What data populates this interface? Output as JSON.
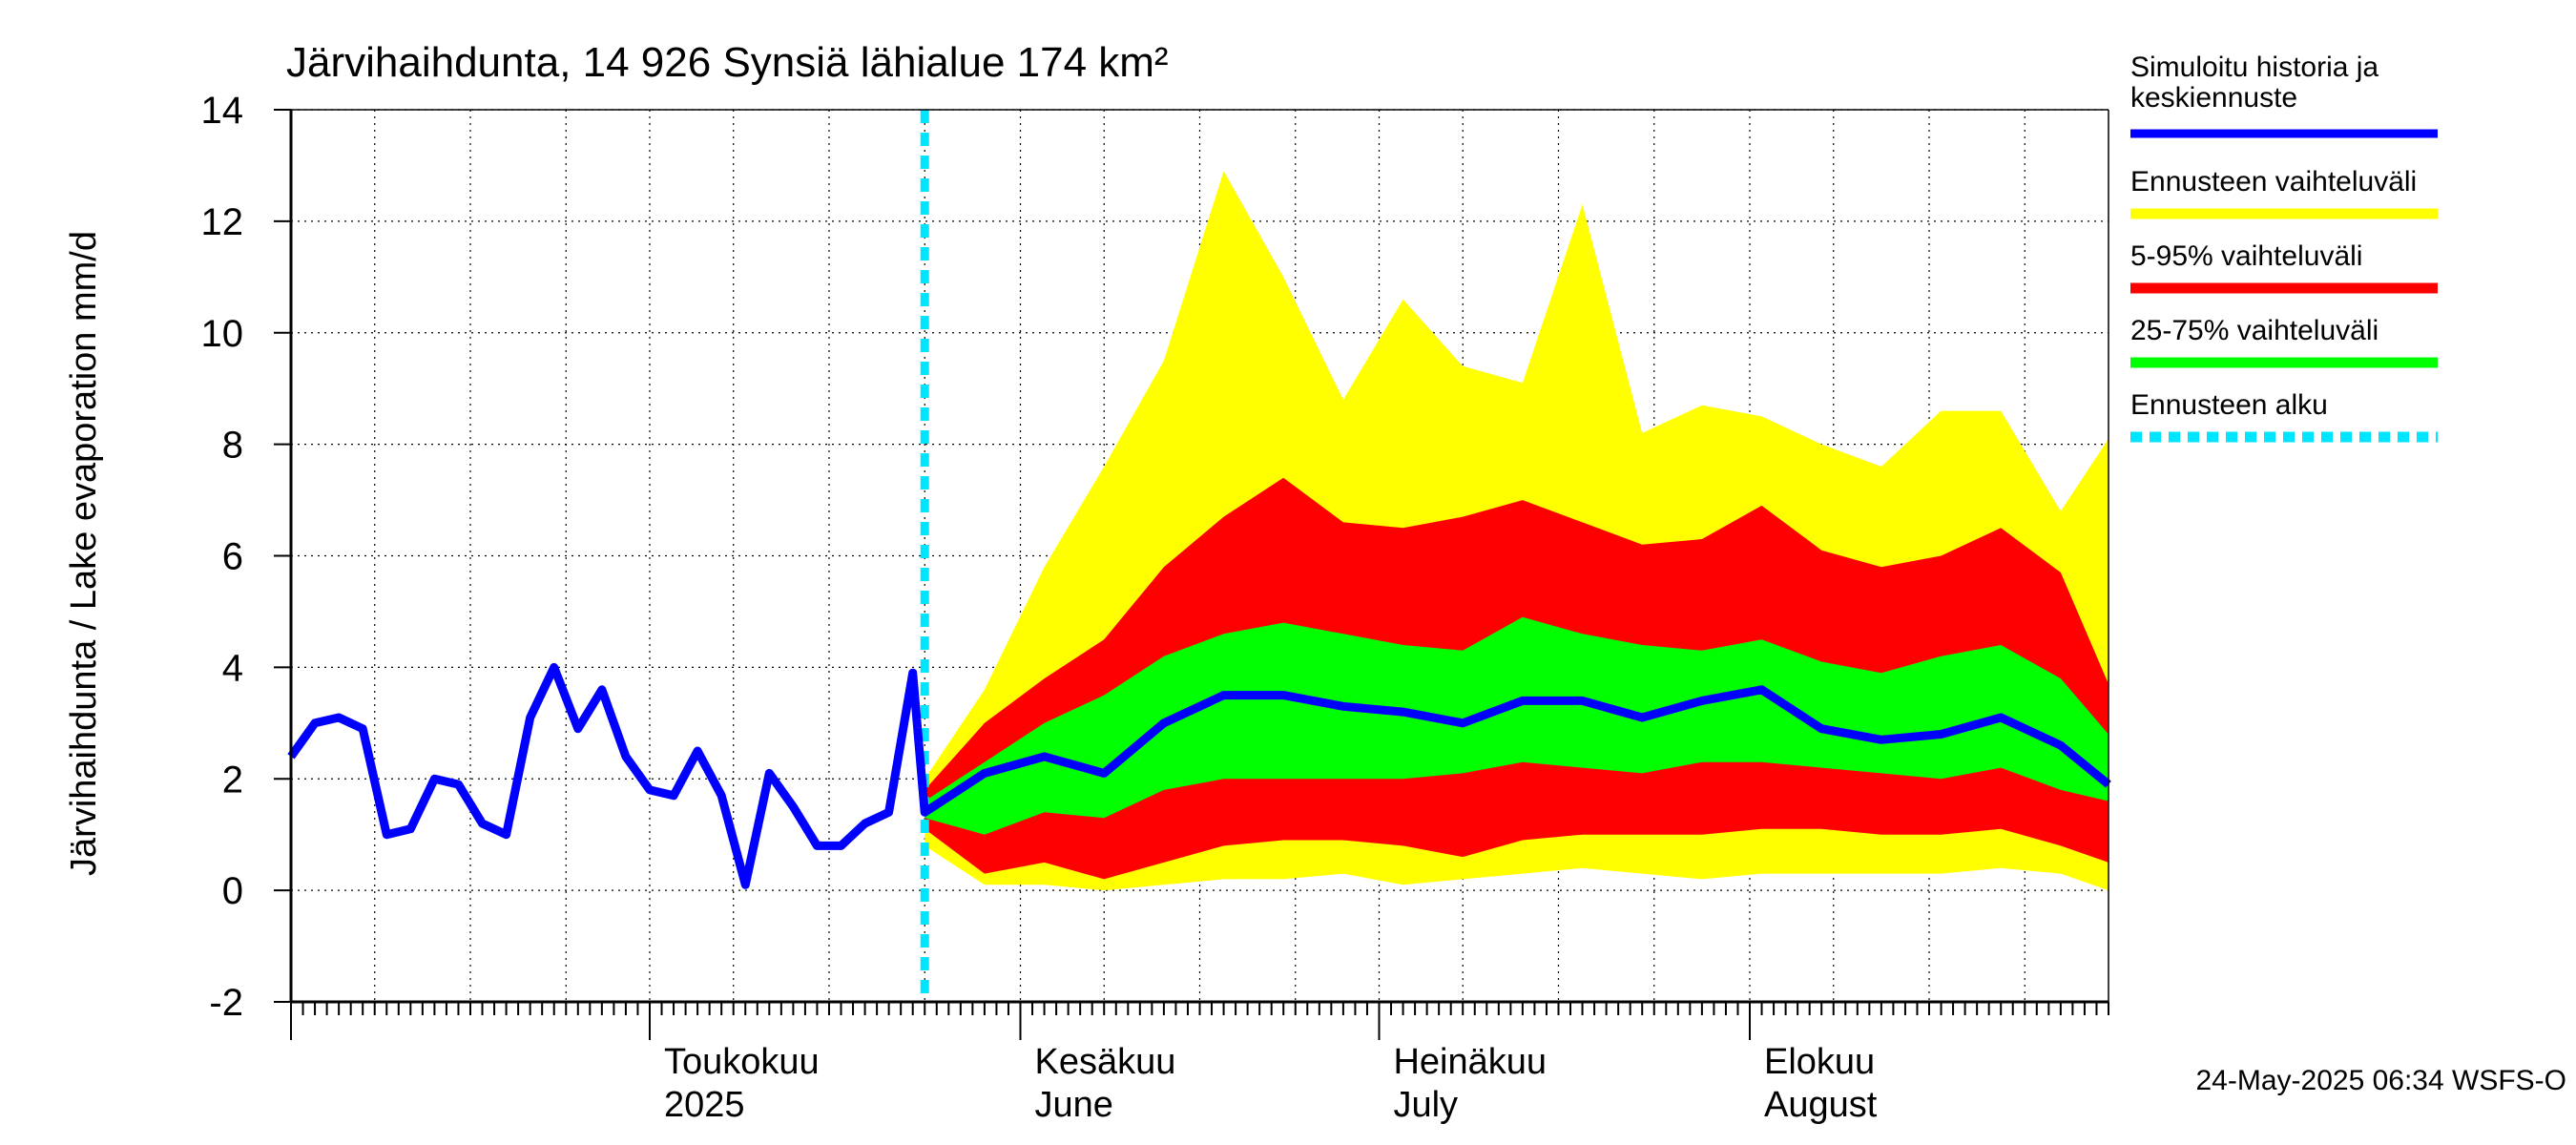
{
  "chart_data": {
    "type": "area",
    "title": "Järvihaihdunta, 14 926 Synsiä lähialue 174 km²",
    "ylabel": "Järvihaihdunta / Lake evaporation   mm/d",
    "ylim": [
      -2,
      14
    ],
    "y_ticks": [
      "-2",
      "0",
      "2",
      "4",
      "6",
      "8",
      "10",
      "12",
      "14"
    ],
    "x_range": [
      "2025-04-01",
      "2025-08-31"
    ],
    "month_labels": [
      {
        "line1": "Toukokuu",
        "line2": "2025",
        "date": "2025-05-01"
      },
      {
        "line1": "Kesäkuu",
        "line2": "June",
        "date": "2025-06-01"
      },
      {
        "line1": "Heinäkuu",
        "line2": "July",
        "date": "2025-07-01"
      },
      {
        "line1": "Elokuu",
        "line2": "August",
        "date": "2025-08-01"
      }
    ],
    "forecast_start": "2025-05-24",
    "history": {
      "dates": [
        "2025-04-01",
        "2025-04-03",
        "2025-04-05",
        "2025-04-07",
        "2025-04-09",
        "2025-04-11",
        "2025-04-13",
        "2025-04-15",
        "2025-04-17",
        "2025-04-19",
        "2025-04-21",
        "2025-04-23",
        "2025-04-25",
        "2025-04-27",
        "2025-04-29",
        "2025-05-01",
        "2025-05-03",
        "2025-05-05",
        "2025-05-07",
        "2025-05-09",
        "2025-05-11",
        "2025-05-13",
        "2025-05-15",
        "2025-05-17",
        "2025-05-19",
        "2025-05-21",
        "2025-05-23",
        "2025-05-24"
      ],
      "values": [
        2.4,
        3.0,
        3.1,
        2.9,
        1.0,
        1.1,
        2.0,
        1.9,
        1.2,
        1.0,
        3.1,
        4.0,
        2.9,
        3.6,
        2.4,
        1.8,
        1.7,
        2.5,
        1.7,
        0.1,
        2.1,
        1.5,
        0.8,
        0.8,
        1.2,
        1.4,
        3.9,
        1.4
      ]
    },
    "forecast": {
      "dates": [
        "2025-05-24",
        "2025-05-29",
        "2025-06-03",
        "2025-06-08",
        "2025-06-13",
        "2025-06-18",
        "2025-06-23",
        "2025-06-28",
        "2025-07-03",
        "2025-07-08",
        "2025-07-13",
        "2025-07-18",
        "2025-07-23",
        "2025-07-28",
        "2025-08-02",
        "2025-08-07",
        "2025-08-12",
        "2025-08-17",
        "2025-08-22",
        "2025-08-27",
        "2025-08-31"
      ],
      "median": [
        1.4,
        2.1,
        2.4,
        2.1,
        3.0,
        3.5,
        3.5,
        3.3,
        3.2,
        3.0,
        3.4,
        3.4,
        3.1,
        3.4,
        3.6,
        2.9,
        2.7,
        2.8,
        3.1,
        2.6,
        1.9
      ],
      "p25": [
        1.3,
        1.0,
        1.4,
        1.3,
        1.8,
        2.0,
        2.0,
        2.0,
        2.0,
        2.1,
        2.3,
        2.2,
        2.1,
        2.3,
        2.3,
        2.2,
        2.1,
        2.0,
        2.2,
        1.8,
        1.6
      ],
      "p75": [
        1.6,
        2.3,
        3.0,
        3.5,
        4.2,
        4.6,
        4.8,
        4.6,
        4.4,
        4.3,
        4.9,
        4.6,
        4.4,
        4.3,
        4.5,
        4.1,
        3.9,
        4.2,
        4.4,
        3.8,
        2.8
      ],
      "p5": [
        1.1,
        0.3,
        0.5,
        0.2,
        0.5,
        0.8,
        0.9,
        0.9,
        0.8,
        0.6,
        0.9,
        1.0,
        1.0,
        1.0,
        1.1,
        1.1,
        1.0,
        1.0,
        1.1,
        0.8,
        0.5
      ],
      "p95": [
        1.8,
        3.0,
        3.8,
        4.5,
        5.8,
        6.7,
        7.4,
        6.6,
        6.5,
        6.7,
        7.0,
        6.6,
        6.2,
        6.3,
        6.9,
        6.1,
        5.8,
        6.0,
        6.5,
        5.7,
        3.7
      ],
      "min": [
        0.8,
        0.1,
        0.1,
        0.0,
        0.1,
        0.2,
        0.2,
        0.3,
        0.1,
        0.2,
        0.3,
        0.4,
        0.3,
        0.2,
        0.3,
        0.3,
        0.3,
        0.3,
        0.4,
        0.3,
        0.0
      ],
      "max": [
        2.0,
        3.6,
        5.8,
        7.6,
        9.5,
        12.9,
        11.0,
        8.8,
        10.6,
        9.4,
        9.1,
        12.3,
        8.2,
        8.7,
        8.5,
        8.0,
        7.6,
        8.6,
        8.6,
        6.8,
        8.1
      ]
    },
    "legend": [
      {
        "label": "Simuloitu historia ja keskiennuste",
        "color": "#0000ff",
        "style": "solid"
      },
      {
        "label": "Ennusteen vaihteluväli",
        "color": "#ffff00",
        "style": "solid"
      },
      {
        "label": "5-95% vaihteluväli",
        "color": "#ff0000",
        "style": "solid"
      },
      {
        "label": "25-75% vaihteluväli",
        "color": "#00ff00",
        "style": "solid"
      },
      {
        "label": "Ennusteen alku",
        "color": "#00e5ff",
        "style": "dashed"
      }
    ],
    "legend_position": "right",
    "grid": true
  },
  "timestamp": "24-May-2025 06:34 WSFS-O"
}
